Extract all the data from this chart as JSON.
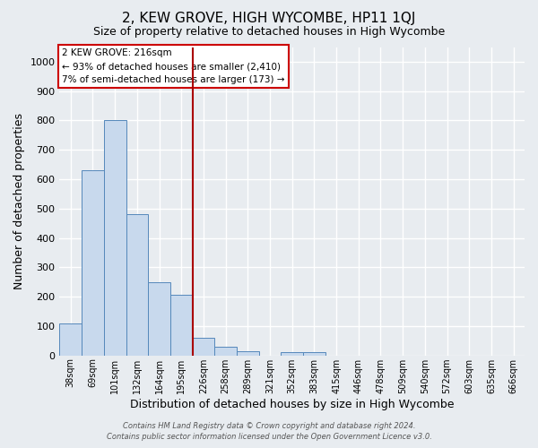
{
  "title": "2, KEW GROVE, HIGH WYCOMBE, HP11 1QJ",
  "subtitle": "Size of property relative to detached houses in High Wycombe",
  "xlabel": "Distribution of detached houses by size in High Wycombe",
  "ylabel": "Number of detached properties",
  "footer_line1": "Contains HM Land Registry data © Crown copyright and database right 2024.",
  "footer_line2": "Contains public sector information licensed under the Open Government Licence v3.0.",
  "bar_labels": [
    "38sqm",
    "69sqm",
    "101sqm",
    "132sqm",
    "164sqm",
    "195sqm",
    "226sqm",
    "258sqm",
    "289sqm",
    "321sqm",
    "352sqm",
    "383sqm",
    "415sqm",
    "446sqm",
    "478sqm",
    "509sqm",
    "540sqm",
    "572sqm",
    "603sqm",
    "635sqm",
    "666sqm"
  ],
  "bar_values": [
    110,
    630,
    800,
    480,
    250,
    205,
    60,
    30,
    15,
    0,
    10,
    10,
    0,
    0,
    0,
    0,
    0,
    0,
    0,
    0,
    0
  ],
  "bar_color": "#c8d9ed",
  "bar_edge_color": "#5588bb",
  "highlight_bar_index": 6,
  "highlight_color": "#aa0000",
  "annotation_title": "2 KEW GROVE: 216sqm",
  "annotation_line1": "← 93% of detached houses are smaller (2,410)",
  "annotation_line2": "7% of semi-detached houses are larger (173) →",
  "annotation_box_facecolor": "#ffffff",
  "annotation_box_edgecolor": "#cc0000",
  "ylim": [
    0,
    1050
  ],
  "yticks": [
    0,
    100,
    200,
    300,
    400,
    500,
    600,
    700,
    800,
    900,
    1000
  ],
  "background_color": "#e8ecf0",
  "plot_background": "#e8ecf0",
  "grid_color": "#ffffff",
  "title_fontsize": 11,
  "subtitle_fontsize": 9,
  "xlabel_fontsize": 9,
  "ylabel_fontsize": 9
}
